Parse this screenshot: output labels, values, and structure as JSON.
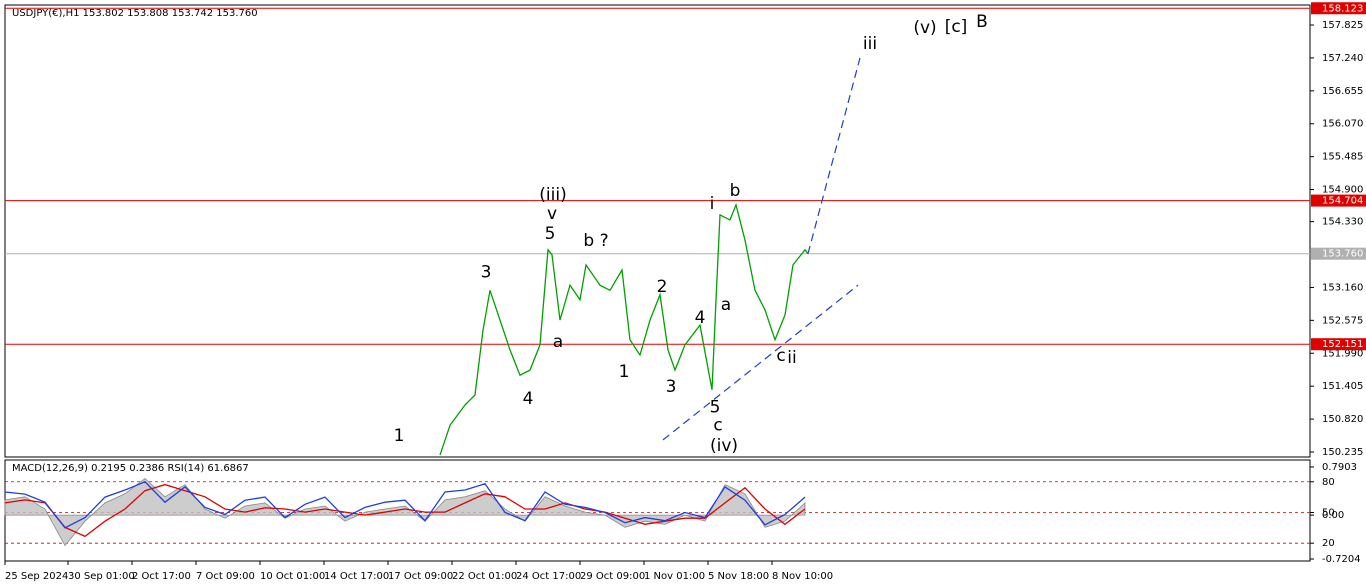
{
  "chart_data": [
    {
      "type": "line",
      "title": "USDJPY(€),H1  153.802 153.808 153.742 153.760",
      "xlim": [
        5,
        1310
      ],
      "ylim": [
        150.146,
        158.163
      ],
      "yticks": [
        157.825,
        {
          "value": 157.24,
          "label": "157.240"
        },
        156.655,
        {
          "value": 156.07,
          "label": "156.070"
        },
        155.485,
        {
          "value": 154.9,
          "label": "154.900"
        },
        {
          "value": 154.33,
          "label": "154.330"
        },
        {
          "value": 153.16,
          "label": "153.160"
        },
        152.575,
        {
          "value": 151.99,
          "label": "151.990"
        },
        151.405,
        {
          "value": 150.82,
          "label": "150.820"
        },
        150.235
      ],
      "hlines": [
        {
          "value": 158.123,
          "color": "#e00000"
        },
        {
          "value": 154.704,
          "color": "#e00000"
        },
        {
          "value": 153.76,
          "label": "153.760",
          "color": "#b0b0b0"
        },
        {
          "value": 152.151,
          "color": "#e00000"
        }
      ],
      "series": [
        {
          "color": "#00a000",
          "style": "solid",
          "x": [
            440,
            450,
            465,
            475,
            483,
            490,
            500,
            510,
            520,
            530,
            540,
            548,
            552,
            560,
            570,
            580,
            586,
            600,
            610,
            622,
            630,
            640,
            650,
            660,
            668,
            675,
            685,
            700,
            712,
            716,
            720,
            730,
            736,
            745,
            755,
            765,
            775,
            785,
            793,
            805,
            808
          ],
          "values": [
            150.18,
            150.71,
            151.07,
            151.25,
            152.4,
            153.11,
            152.58,
            152.05,
            151.6,
            151.69,
            152.14,
            153.83,
            153.74,
            152.58,
            153.2,
            152.94,
            153.56,
            153.2,
            153.11,
            153.47,
            152.23,
            151.96,
            152.58,
            153.03,
            152.05,
            151.69,
            152.14,
            152.49,
            151.34,
            152.94,
            154.45,
            154.36,
            154.63,
            154.0,
            153.11,
            152.76,
            152.23,
            152.67,
            153.56,
            153.83,
            153.76
          ]
        },
        {
          "color": "#1f3fbf",
          "style": "dashed",
          "x": [
            808,
            860
          ],
          "values": [
            153.76,
            157.24
          ]
        },
        {
          "color": "#1f3fbf",
          "style": "dashed",
          "x": [
            663,
            858
          ],
          "values": [
            150.45,
            153.2
          ]
        }
      ],
      "annotations": [
        {
          "text": "1",
          "x": 399,
          "y": 150.52,
          "color": "#000000"
        },
        {
          "text": "3",
          "x": 486,
          "y": 153.43,
          "color": "#000000"
        },
        {
          "text": "4",
          "x": 528,
          "y": 151.18,
          "color": "#000000"
        },
        {
          "text": "5",
          "x": 550,
          "y": 154.11,
          "color": "#000000"
        },
        {
          "text": "v",
          "x": 552,
          "y": 154.47,
          "color": "#e020e0"
        },
        {
          "text": "(iii)",
          "x": 553,
          "y": 154.8,
          "color": "#1f3fbf"
        },
        {
          "text": "a",
          "x": 558,
          "y": 152.19,
          "color": "#e020e0"
        },
        {
          "text": "b ?",
          "x": 596,
          "y": 153.99,
          "color": "#e020e0"
        },
        {
          "text": "1",
          "x": 624,
          "y": 151.66,
          "color": "#000000"
        },
        {
          "text": "2",
          "x": 662,
          "y": 153.17,
          "color": "#000000"
        },
        {
          "text": "3",
          "x": 671,
          "y": 151.39,
          "color": "#000000"
        },
        {
          "text": "4",
          "x": 700,
          "y": 152.62,
          "color": "#000000"
        },
        {
          "text": "5",
          "x": 715,
          "y": 151.03,
          "color": "#000000"
        },
        {
          "text": "c",
          "x": 718,
          "y": 150.71,
          "color": "#e020e0"
        },
        {
          "text": "(iv)",
          "x": 724,
          "y": 150.34,
          "color": "#1f3fbf"
        },
        {
          "text": "i",
          "x": 712,
          "y": 154.64,
          "color": "#e020e0"
        },
        {
          "text": "b",
          "x": 735,
          "y": 154.87,
          "color": "#000000"
        },
        {
          "text": "a",
          "x": 726,
          "y": 152.85,
          "color": "#000000"
        },
        {
          "text": "c",
          "x": 781,
          "y": 151.94,
          "color": "#000000"
        },
        {
          "text": "ii",
          "x": 792,
          "y": 151.91,
          "color": "#e020e0"
        },
        {
          "text": "iii",
          "x": 870,
          "y": 157.49,
          "color": "#e020e0"
        },
        {
          "text": "(v)",
          "x": 925,
          "y": 157.77,
          "color": "#1f3fbf"
        },
        {
          "text": "[c]",
          "x": 956,
          "y": 157.79,
          "color": "#108010"
        },
        {
          "text": "B",
          "x": 982,
          "y": 157.88,
          "color": "#e00000"
        }
      ]
    },
    {
      "type": "line",
      "title": "MACD(12,26,9) 0.2195 0.2386 RSI(14) 61.6867",
      "xlim": [
        5,
        1310
      ],
      "ylim": [
        2.6,
        100.3
      ],
      "yticks": [
        80,
        50,
        20
      ],
      "grid": true,
      "grid_color": "#d00000",
      "y2lim": [
        -0.7529,
        0.8878
      ],
      "y2ticks": [
        0.7903,
        {
          "value": 0,
          "label": "0.00"
        },
        -0.7204
      ],
      "xticks": [
        {
          "value": 5,
          "label": "25 Sep 2024"
        },
        {
          "value": 68,
          "label": "30 Sep 01:00"
        },
        {
          "value": 132,
          "label": "2 Oct 17:00"
        },
        {
          "value": 196,
          "label": "7 Oct 09:00"
        },
        {
          "value": 260,
          "label": "10 Oct 01:00"
        },
        {
          "value": 324,
          "label": "14 Oct 17:00"
        },
        {
          "value": 388,
          "label": "17 Oct 09:00"
        },
        {
          "value": 452,
          "label": "22 Oct 01:00"
        },
        {
          "value": 516,
          "label": "24 Oct 17:00"
        },
        {
          "value": 580,
          "label": "29 Oct 09:00"
        },
        {
          "value": 644,
          "label": "1 Nov 01:00"
        },
        {
          "value": 708,
          "label": "5 Nov 18:00"
        },
        {
          "value": 772,
          "label": "8 Nov 10:00"
        }
      ],
      "series": [
        {
          "color": "#c0c0c0",
          "style": "area",
          "axis": "y2",
          "x": [
            5,
            25,
            45,
            65,
            85,
            105,
            125,
            145,
            165,
            185,
            205,
            225,
            245,
            265,
            285,
            305,
            325,
            345,
            365,
            385,
            405,
            425,
            445,
            465,
            485,
            505,
            525,
            545,
            565,
            585,
            605,
            625,
            645,
            665,
            685,
            705,
            725,
            745,
            765,
            785,
            805
          ],
          "values": [
            0.25,
            0.3,
            0.1,
            -0.5,
            -0.1,
            0.2,
            0.35,
            0.6,
            0.3,
            0.5,
            0.1,
            -0.05,
            0.15,
            0.2,
            -0.05,
            0.1,
            0.15,
            -0.1,
            0.05,
            0.1,
            0.15,
            -0.1,
            0.25,
            0.3,
            0.4,
            0.1,
            -0.1,
            0.3,
            0.15,
            0.05,
            0,
            -0.2,
            -0.1,
            -0.15,
            0,
            -0.1,
            0.5,
            0.35,
            -0.2,
            -0.1,
            0.2
          ]
        },
        {
          "color": "#e00000",
          "style": "solid",
          "axis": "y2",
          "x": [
            5,
            25,
            45,
            65,
            85,
            105,
            125,
            145,
            165,
            185,
            205,
            225,
            245,
            265,
            285,
            305,
            325,
            345,
            365,
            385,
            405,
            425,
            445,
            465,
            485,
            505,
            525,
            545,
            565,
            585,
            605,
            625,
            645,
            665,
            685,
            705,
            725,
            745,
            765,
            785,
            805
          ],
          "values": [
            0.2,
            0.25,
            0.2,
            -0.2,
            -0.35,
            -0.1,
            0.1,
            0.4,
            0.5,
            0.4,
            0.3,
            0.1,
            0.05,
            0.12,
            0.1,
            0.05,
            0.1,
            0.05,
            0,
            0.05,
            0.1,
            0.05,
            0.05,
            0.2,
            0.35,
            0.3,
            0.1,
            0.1,
            0.2,
            0.1,
            0.05,
            -0.05,
            -0.15,
            -0.1,
            -0.05,
            -0.05,
            0.2,
            0.45,
            0.1,
            -0.15,
            0.1
          ]
        },
        {
          "color": "#1f3fdf",
          "style": "solid",
          "x": [
            5,
            25,
            45,
            65,
            85,
            105,
            125,
            145,
            165,
            185,
            205,
            225,
            245,
            265,
            285,
            305,
            325,
            345,
            365,
            385,
            405,
            425,
            445,
            465,
            485,
            505,
            525,
            545,
            565,
            585,
            605,
            625,
            645,
            665,
            685,
            705,
            725,
            745,
            765,
            785,
            805
          ],
          "values": [
            70,
            68,
            60,
            35,
            45,
            65,
            72,
            80,
            60,
            75,
            55,
            48,
            62,
            65,
            45,
            58,
            65,
            45,
            55,
            60,
            62,
            42,
            70,
            72,
            78,
            50,
            42,
            70,
            58,
            55,
            50,
            40,
            45,
            42,
            50,
            45,
            75,
            62,
            38,
            48,
            65
          ]
        }
      ]
    }
  ]
}
